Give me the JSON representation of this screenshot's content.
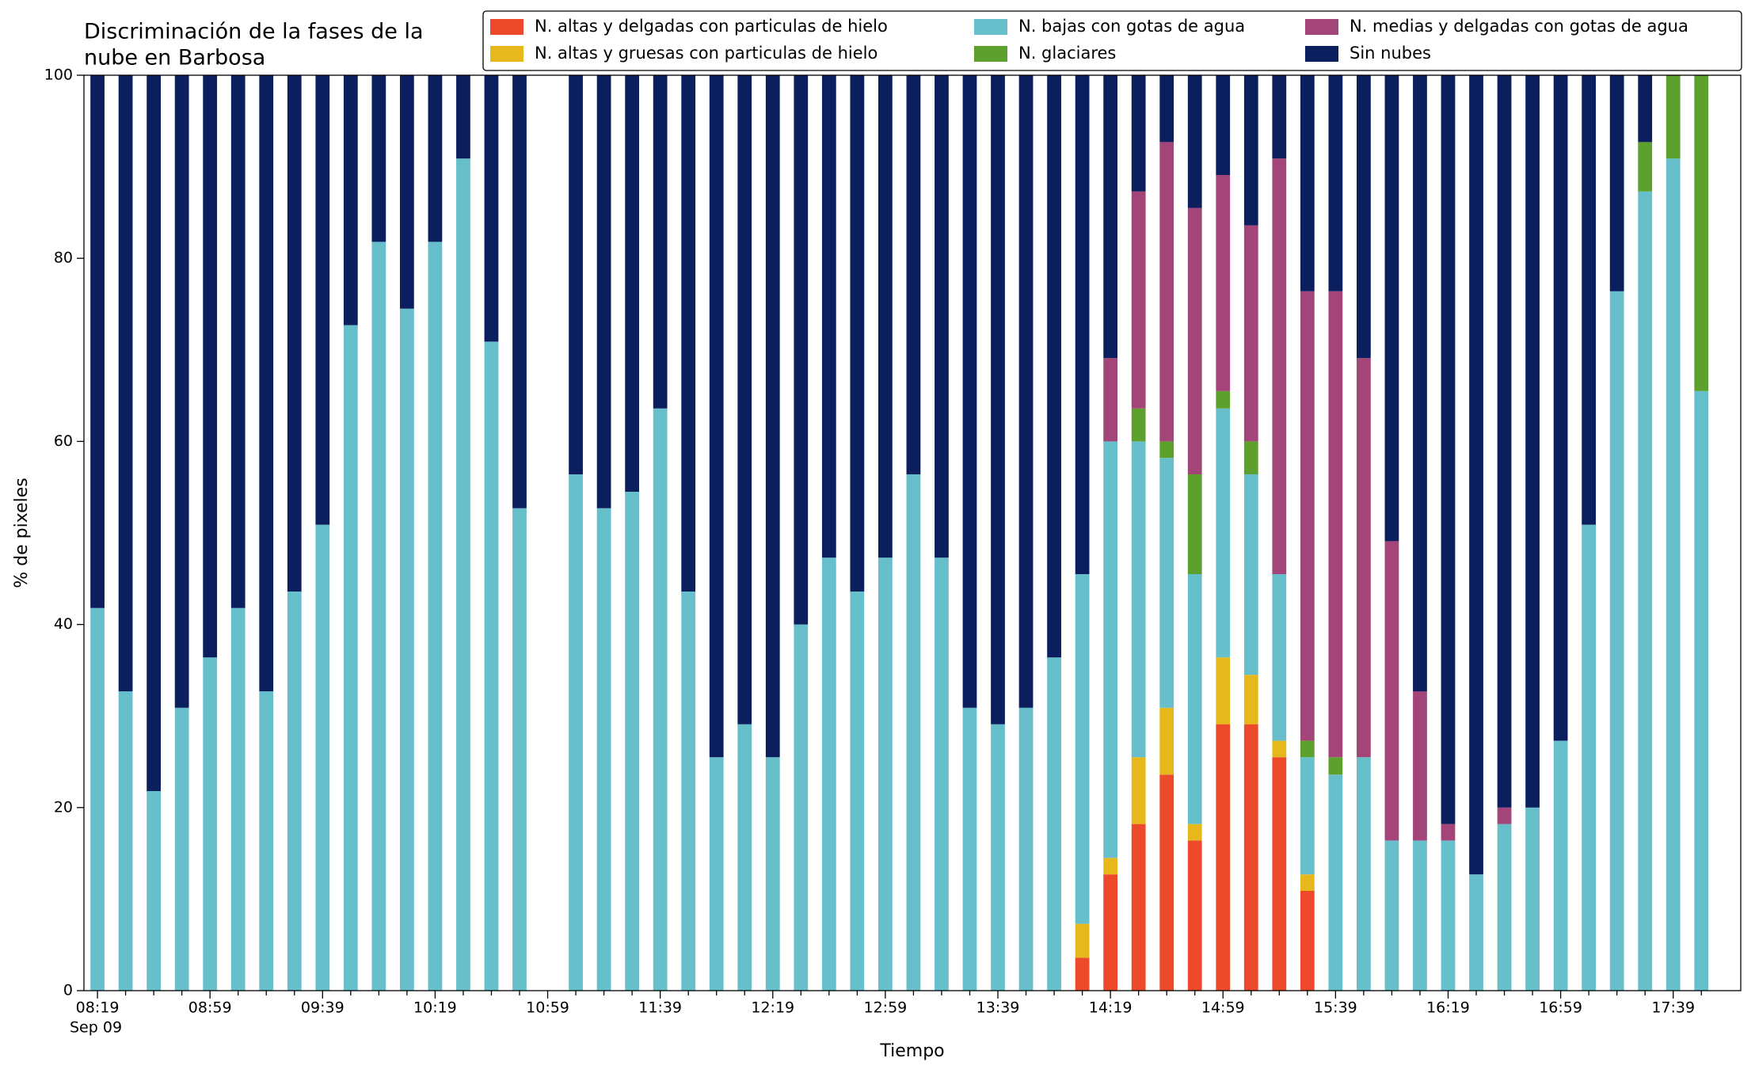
{
  "chart_data": {
    "type": "stacked_bar",
    "title": [
      "Discriminación de la fases de la",
      "nube en Barbosa"
    ],
    "x_label": "Tiempo",
    "y_label": "% de pixeles",
    "x_date_label": "Sep 09",
    "categories": [
      "08:19",
      null,
      null,
      null,
      "08:59",
      null,
      null,
      null,
      "09:39",
      null,
      null,
      null,
      "10:19",
      null,
      null,
      null,
      "10:59",
      null,
      null,
      null,
      "11:39",
      null,
      null,
      null,
      "12:19",
      null,
      null,
      null,
      "12:59",
      null,
      null,
      null,
      "13:39",
      null,
      null,
      null,
      "14:19",
      null,
      null,
      null,
      "14:59",
      null,
      null,
      null,
      "15:39",
      null,
      null,
      null,
      "16:19",
      null,
      null,
      null,
      "16:59",
      null,
      null,
      null,
      "17:39",
      null
    ],
    "ylim": [
      0,
      100
    ],
    "yticks": [
      0,
      20,
      40,
      60,
      80,
      100
    ],
    "series": [
      {
        "name": "N. altas y delgadas con particulas de hielo",
        "color": "#ec4a2b",
        "values": [
          0,
          0,
          0,
          0,
          0,
          0,
          0,
          0,
          0,
          0,
          0,
          0,
          0,
          0,
          0,
          0,
          null,
          0,
          0,
          0,
          0,
          0,
          0,
          0,
          0,
          0,
          0,
          0,
          0,
          0,
          0,
          0,
          0,
          0,
          0,
          3.6,
          12.7,
          18.2,
          23.6,
          16.4,
          29.1,
          29.1,
          25.5,
          10.9,
          0,
          0,
          0,
          0,
          0,
          0,
          0,
          0,
          0,
          0,
          0,
          0,
          0,
          0
        ]
      },
      {
        "name": "N. altas y gruesas con particulas de hielo",
        "color": "#e6b81c",
        "values": [
          0,
          0,
          0,
          0,
          0,
          0,
          0,
          0,
          0,
          0,
          0,
          0,
          0,
          0,
          0,
          0,
          null,
          0,
          0,
          0,
          0,
          0,
          0,
          0,
          0,
          0,
          0,
          0,
          0,
          0,
          0,
          0,
          0,
          0,
          0,
          3.7,
          1.8,
          7.3,
          7.3,
          1.8,
          7.3,
          5.4,
          1.8,
          1.8,
          0,
          0,
          0,
          0,
          0,
          0,
          0,
          0,
          0,
          0,
          0,
          0,
          0,
          0
        ]
      },
      {
        "name": "N. bajas con gotas de agua",
        "color": "#66bfca",
        "values": [
          41.8,
          32.7,
          21.8,
          30.9,
          36.4,
          41.8,
          32.7,
          43.6,
          50.9,
          72.7,
          81.8,
          74.5,
          81.8,
          90.9,
          70.9,
          52.7,
          null,
          56.4,
          52.7,
          54.5,
          63.6,
          43.6,
          25.5,
          29.1,
          25.5,
          40.0,
          47.3,
          43.6,
          47.3,
          56.4,
          47.3,
          30.9,
          29.1,
          30.9,
          36.4,
          38.2,
          45.5,
          34.5,
          27.3,
          27.3,
          27.2,
          21.9,
          18.2,
          12.8,
          23.6,
          25.5,
          16.4,
          16.4,
          16.4,
          12.7,
          18.2,
          20.0,
          27.3,
          50.9,
          76.4,
          87.3,
          90.9,
          65.5
        ]
      },
      {
        "name": "N. glaciares",
        "color": "#5ea02e",
        "values": [
          0,
          0,
          0,
          0,
          0,
          0,
          0,
          0,
          0,
          0,
          0,
          0,
          0,
          0,
          0,
          0,
          null,
          0,
          0,
          0,
          0,
          0,
          0,
          0,
          0,
          0,
          0,
          0,
          0,
          0,
          0,
          0,
          0,
          0,
          0,
          0,
          0,
          3.6,
          1.8,
          10.9,
          1.9,
          3.6,
          0,
          1.8,
          1.9,
          0,
          0,
          0,
          0,
          0,
          0,
          0,
          0,
          0,
          0,
          5.4,
          9.1,
          34.5
        ]
      },
      {
        "name": "N. medias y delgadas con gotas de agua",
        "color": "#a4457a",
        "values": [
          0,
          0,
          0,
          0,
          0,
          0,
          0,
          0,
          0,
          0,
          0,
          0,
          0,
          0,
          0,
          0,
          null,
          0,
          0,
          0,
          0,
          0,
          0,
          0,
          0,
          0,
          0,
          0,
          0,
          0,
          0,
          0,
          0,
          0,
          0,
          0,
          9.1,
          23.7,
          32.7,
          29.1,
          23.6,
          23.6,
          45.4,
          49.1,
          50.9,
          43.6,
          32.7,
          16.3,
          1.8,
          0,
          1.8,
          0,
          0,
          0,
          0,
          0,
          0,
          0
        ]
      },
      {
        "name": "Sin nubes",
        "color": "#0b1f5e",
        "values": [
          58.2,
          67.3,
          78.2,
          69.1,
          63.6,
          58.2,
          67.3,
          56.4,
          49.1,
          27.3,
          18.2,
          25.5,
          18.2,
          9.1,
          29.1,
          47.3,
          null,
          43.6,
          47.3,
          45.5,
          36.4,
          56.4,
          74.5,
          70.9,
          74.5,
          60.0,
          52.7,
          56.4,
          52.7,
          43.6,
          52.7,
          69.1,
          70.9,
          69.1,
          63.6,
          54.5,
          30.9,
          12.7,
          7.3,
          14.5,
          10.9,
          16.4,
          9.1,
          23.6,
          23.6,
          30.9,
          50.9,
          67.3,
          81.8,
          87.3,
          80.0,
          80.0,
          72.7,
          49.1,
          23.6,
          7.3,
          0,
          0
        ]
      }
    ]
  }
}
